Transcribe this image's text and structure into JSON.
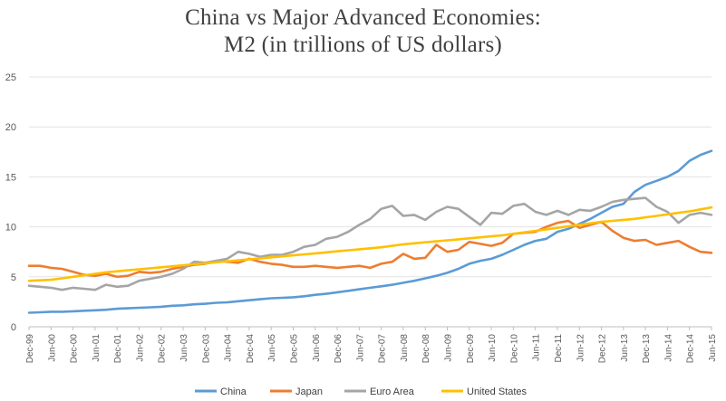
{
  "chart_data": {
    "type": "line",
    "title": [
      "China vs Major Advanced Economies:",
      "M2 (in trillions of US dollars)"
    ],
    "xlabel": "",
    "ylabel": "",
    "ylim": [
      0,
      25
    ],
    "yticks": [
      0,
      5,
      10,
      15,
      20,
      25
    ],
    "grid": true,
    "legend_position": "bottom",
    "x_tick_labels": [
      "Dec-99",
      "Jun-00",
      "Dec-00",
      "Jun-01",
      "Dec-01",
      "Jun-02",
      "Dec-02",
      "Jun-03",
      "Dec-03",
      "Jun-04",
      "Dec-04",
      "Jun-05",
      "Dec-05",
      "Jun-06",
      "Dec-06",
      "Jun-07",
      "Dec-07",
      "Jun-08",
      "Dec-08",
      "Jun-09",
      "Dec-09",
      "Jun-10",
      "Dec-10",
      "Jun-11",
      "Dec-11",
      "Jun-12",
      "Dec-12",
      "Jun-13",
      "Dec-13",
      "Jun-14",
      "Dec-14",
      "Jun-15"
    ],
    "x_note": "Quarterly observations from Dec-99 to Jun-15 (63 points)",
    "series": [
      {
        "name": "China",
        "color": "#5B9BD5",
        "values": [
          1.4,
          1.45,
          1.5,
          1.5,
          1.55,
          1.6,
          1.65,
          1.7,
          1.8,
          1.85,
          1.9,
          1.95,
          2.0,
          2.1,
          2.15,
          2.25,
          2.3,
          2.4,
          2.45,
          2.55,
          2.65,
          2.75,
          2.85,
          2.9,
          2.95,
          3.05,
          3.2,
          3.3,
          3.45,
          3.6,
          3.75,
          3.9,
          4.05,
          4.2,
          4.4,
          4.6,
          4.85,
          5.1,
          5.4,
          5.8,
          6.3,
          6.6,
          6.8,
          7.2,
          7.7,
          8.2,
          8.6,
          8.8,
          9.5,
          9.8,
          10.3,
          10.8,
          11.4,
          12.0,
          12.3,
          13.5,
          14.2,
          14.6,
          15.0,
          15.6,
          16.6,
          17.2,
          17.6
        ]
      },
      {
        "name": "Japan",
        "color": "#ED7D31",
        "values": [
          6.1,
          6.1,
          5.9,
          5.8,
          5.5,
          5.2,
          5.1,
          5.3,
          5.0,
          5.1,
          5.5,
          5.4,
          5.5,
          5.8,
          6.0,
          6.2,
          6.3,
          6.6,
          6.5,
          6.4,
          6.8,
          6.5,
          6.3,
          6.2,
          6.0,
          6.0,
          6.1,
          6.0,
          5.9,
          6.0,
          6.1,
          5.9,
          6.3,
          6.5,
          7.3,
          6.8,
          6.9,
          8.2,
          7.5,
          7.7,
          8.5,
          8.3,
          8.1,
          8.4,
          9.3,
          9.4,
          9.5,
          10.0,
          10.4,
          10.6,
          9.9,
          10.2,
          10.5,
          9.6,
          8.9,
          8.6,
          8.7,
          8.2,
          8.4,
          8.6,
          8.0,
          7.5,
          7.4
        ]
      },
      {
        "name": "Euro Area",
        "color": "#A5A5A5",
        "values": [
          4.1,
          4.0,
          3.9,
          3.7,
          3.9,
          3.8,
          3.7,
          4.2,
          4.0,
          4.1,
          4.6,
          4.8,
          5.0,
          5.3,
          5.8,
          6.5,
          6.4,
          6.6,
          6.8,
          7.5,
          7.3,
          7.0,
          7.2,
          7.2,
          7.5,
          8.0,
          8.2,
          8.8,
          9.0,
          9.5,
          10.2,
          10.8,
          11.8,
          12.1,
          11.1,
          11.2,
          10.7,
          11.5,
          12.0,
          11.8,
          11.0,
          10.2,
          11.4,
          11.3,
          12.1,
          12.3,
          11.5,
          11.2,
          11.6,
          11.2,
          11.7,
          11.6,
          12.0,
          12.5,
          12.7,
          12.8,
          12.9,
          12.0,
          11.5,
          10.4,
          11.2,
          11.4,
          11.2
        ]
      },
      {
        "name": "United States",
        "color": "#FFC000",
        "values": [
          4.6,
          4.65,
          4.7,
          4.85,
          5.0,
          5.15,
          5.3,
          5.45,
          5.55,
          5.65,
          5.75,
          5.85,
          5.95,
          6.05,
          6.15,
          6.25,
          6.35,
          6.45,
          6.55,
          6.65,
          6.75,
          6.85,
          6.95,
          7.05,
          7.15,
          7.25,
          7.35,
          7.45,
          7.55,
          7.65,
          7.75,
          7.85,
          7.95,
          8.1,
          8.25,
          8.35,
          8.45,
          8.55,
          8.65,
          8.75,
          8.85,
          8.95,
          9.05,
          9.15,
          9.3,
          9.45,
          9.6,
          9.75,
          9.9,
          10.05,
          10.2,
          10.35,
          10.5,
          10.6,
          10.7,
          10.8,
          10.95,
          11.1,
          11.25,
          11.4,
          11.55,
          11.75,
          11.95
        ]
      }
    ]
  }
}
